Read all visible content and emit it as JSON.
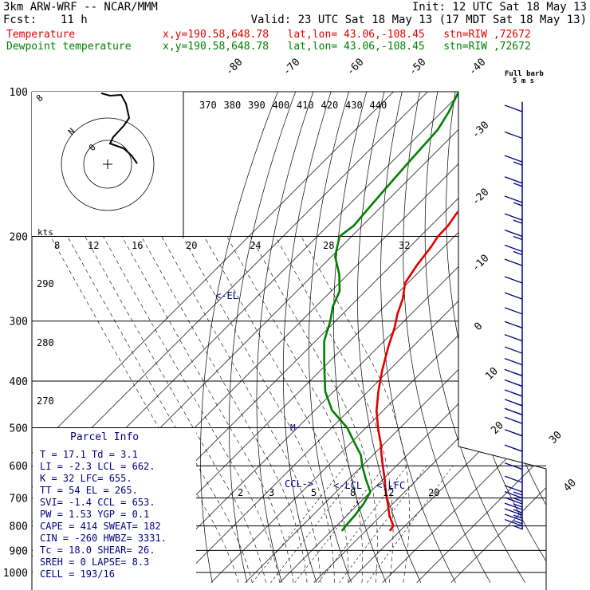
{
  "header": {
    "model": "3km ARW-WRF -- NCAR/MMM",
    "init": "Init: 12 UTC Sat 18 May 13",
    "fcst_label": "Fcst:",
    "fcst_hours": "11 h",
    "valid": "Valid: 23 UTC Sat 18 May 13 (17 MDT Sat 18 May 13)"
  },
  "legend": {
    "temperature": {
      "label": "Temperature",
      "info": "x,y=190.58,648.78   lat,lon= 43.06,-108.45   stn=RIW ,72672",
      "color": "#e00000"
    },
    "dewpoint": {
      "label": "Dewpoint temperature",
      "info": "x,y=190.58,648.78   lat,lon= 43.06,-108.45   stn=RIW ,72672",
      "color": "#008000"
    }
  },
  "parcel_info": {
    "title": "Parcel Info",
    "rows": [
      "T  =   17.1 Td =   3.1",
      "LI =   -2.3 LCL =  662.",
      "K  =     32 LFC=  655.",
      "TT =     54 EL  =  265.",
      "SVI=   -1.4 CCL =  653.",
      "PW =   1.53 YGP =   0.1",
      "CAPE =  414 SWEAT=  182",
      "CIN =  -260 HWBZ= 3331.",
      "Tc =   18.0 SHEAR=  26.",
      "SREH =    0 LAPSE=  8.3",
      "CELL = 193/16"
    ]
  },
  "hodograph": {
    "label_kts": "kts",
    "ring_labels": [
      "8",
      "N",
      "0"
    ]
  },
  "wind_barb_key": {
    "title": "Full barb",
    "units": "5 m s"
  },
  "level_markers": {
    "el": "<-EL",
    "ccl": "CCL->",
    "lcl": "<-LCL",
    "lfc": "<-LFC",
    "m": "M"
  },
  "chart_data": {
    "type": "line",
    "title": "",
    "xlabel": "",
    "ylabel": "",
    "y_scale": "log",
    "pressure_ticks": [
      100,
      200,
      300,
      400,
      500,
      600,
      700,
      800,
      900,
      1000
    ],
    "isotherm_labels": [
      "-80",
      "-70",
      "-60",
      "-50",
      "-40",
      "-30",
      "-20",
      "-10",
      "0",
      "10",
      "20",
      "30",
      "40"
    ],
    "theta_labels_upper": [
      "370",
      "380",
      "390",
      "400",
      "410",
      "420",
      "430",
      "440"
    ],
    "mixing_ratio_labels_upper": [
      "8",
      "12",
      "16",
      "20",
      "24",
      "28",
      "32"
    ],
    "theta_labels_left": [
      "290",
      "280",
      "270"
    ],
    "mixing_ratio_labels_lower": [
      "2",
      "3",
      "5",
      "8",
      "12",
      "20"
    ],
    "series": [
      {
        "name": "Temperature",
        "color": "#e00000",
        "points": [
          [
            100,
            -52.5
          ],
          [
            120,
            -53.5
          ],
          [
            140,
            -54.5
          ],
          [
            150,
            -55.5
          ],
          [
            160,
            -57
          ],
          [
            170,
            -56.5
          ],
          [
            180,
            -56
          ],
          [
            190,
            -55
          ],
          [
            200,
            -54.8
          ],
          [
            210,
            -53.8
          ],
          [
            230,
            -52.5
          ],
          [
            250,
            -50.8
          ],
          [
            270,
            -46.8
          ],
          [
            290,
            -44
          ],
          [
            310,
            -40.8
          ],
          [
            340,
            -37
          ],
          [
            380,
            -32
          ],
          [
            420,
            -27
          ],
          [
            460,
            -22
          ],
          [
            500,
            -16.5
          ],
          [
            540,
            -11
          ],
          [
            570,
            -7.5
          ],
          [
            600,
            -4
          ],
          [
            640,
            0.5
          ],
          [
            680,
            4.5
          ],
          [
            720,
            8.6
          ],
          [
            760,
            12.3
          ],
          [
            800,
            16.6
          ],
          [
            820,
            17.1
          ]
        ]
      },
      {
        "name": "Dewpoint temperature",
        "color": "#008000",
        "points": [
          [
            100,
            -91
          ],
          [
            110,
            -88
          ],
          [
            120,
            -86
          ],
          [
            140,
            -85
          ],
          [
            160,
            -84
          ],
          [
            180,
            -83
          ],
          [
            190,
            -82.5
          ],
          [
            200,
            -83.5
          ],
          [
            220,
            -79
          ],
          [
            240,
            -72.5
          ],
          [
            260,
            -67.5
          ],
          [
            280,
            -65
          ],
          [
            300,
            -61.5
          ],
          [
            330,
            -57.5
          ],
          [
            370,
            -50.5
          ],
          [
            420,
            -42.5
          ],
          [
            460,
            -35
          ],
          [
            500,
            -25.5
          ],
          [
            540,
            -18.5
          ],
          [
            570,
            -13.5
          ],
          [
            600,
            -10
          ],
          [
            640,
            -5
          ],
          [
            680,
            0
          ],
          [
            720,
            1.5
          ],
          [
            760,
            2.3
          ],
          [
            800,
            2.7
          ],
          [
            820,
            3.1
          ]
        ]
      }
    ],
    "wind_barbs": [
      {
        "p": 110,
        "speed_kts": 10
      },
      {
        "p": 125,
        "speed_kts": 10
      },
      {
        "p": 140,
        "speed_kts": 15
      },
      {
        "p": 155,
        "speed_kts": 15
      },
      {
        "p": 170,
        "speed_kts": 15
      },
      {
        "p": 185,
        "speed_kts": 15
      },
      {
        "p": 200,
        "speed_kts": 15
      },
      {
        "p": 215,
        "speed_kts": 15
      },
      {
        "p": 230,
        "speed_kts": 10
      },
      {
        "p": 250,
        "speed_kts": 10
      },
      {
        "p": 270,
        "speed_kts": 10
      },
      {
        "p": 290,
        "speed_kts": 10
      },
      {
        "p": 310,
        "speed_kts": 10
      },
      {
        "p": 330,
        "speed_kts": 10
      },
      {
        "p": 350,
        "speed_kts": 10
      },
      {
        "p": 370,
        "speed_kts": 10
      },
      {
        "p": 390,
        "speed_kts": 5
      },
      {
        "p": 410,
        "speed_kts": 5
      },
      {
        "p": 430,
        "speed_kts": 5
      },
      {
        "p": 450,
        "speed_kts": 5
      },
      {
        "p": 470,
        "speed_kts": 5
      },
      {
        "p": 490,
        "speed_kts": 5
      },
      {
        "p": 520,
        "speed_kts": 5
      },
      {
        "p": 560,
        "speed_kts": 5
      },
      {
        "p": 610,
        "speed_kts": 5
      },
      {
        "p": 650,
        "speed_kts": 10
      },
      {
        "p": 680,
        "speed_kts": 15
      },
      {
        "p": 700,
        "speed_kts": 15
      },
      {
        "p": 720,
        "speed_kts": 15
      },
      {
        "p": 740,
        "speed_kts": 15
      },
      {
        "p": 760,
        "speed_kts": 15
      },
      {
        "p": 780,
        "speed_kts": 15
      },
      {
        "p": 800,
        "speed_kts": 15
      }
    ]
  }
}
